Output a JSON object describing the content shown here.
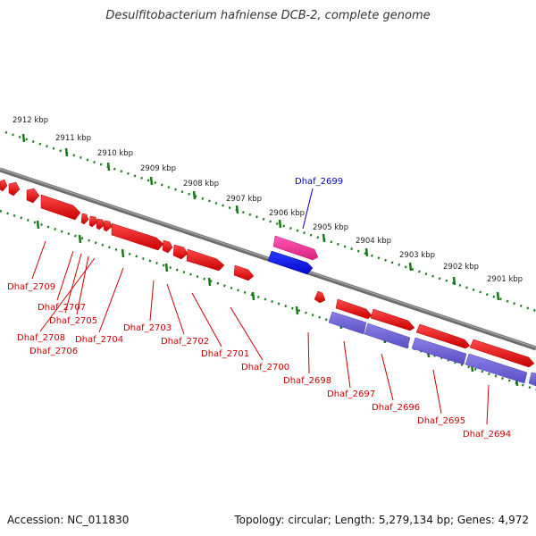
{
  "title": "Desulfitobacterium hafniense DCB-2, complete genome",
  "footer": {
    "accession": "Accession: NC_011830",
    "summary": "Topology: circular; Length: 5,279,134 bp; Genes: 4,972"
  },
  "scale_labels": [
    "2912 kbp",
    "2911 kbp",
    "2910 kbp",
    "2909 kbp",
    "2908 kbp",
    "2907 kbp",
    "2906 kbp",
    "2905 kbp",
    "2904 kbp",
    "2903 kbp",
    "2902 kbp",
    "2901 kbp"
  ],
  "highlight_gene": "Dhaf_2699",
  "gene_labels": [
    "Dhaf_2709",
    "Dhaf_2707",
    "Dhaf_2705",
    "Dhaf_2708",
    "Dhaf_2706",
    "Dhaf_2704",
    "Dhaf_2703",
    "Dhaf_2702",
    "Dhaf_2701",
    "Dhaf_2700",
    "Dhaf_2698",
    "Dhaf_2697",
    "Dhaf_2696",
    "Dhaf_2695",
    "Dhaf_2694"
  ],
  "colors": {
    "backbone": "#7a7a7a",
    "scale": "#1a7a1a",
    "gene_red": "#ee0000",
    "gene_purple": "#6f63d6",
    "gene_pink": "#ee2f9a",
    "gene_blue": "#0010ee",
    "label_red": "#cc0000",
    "label_blue": "#0000bb"
  }
}
